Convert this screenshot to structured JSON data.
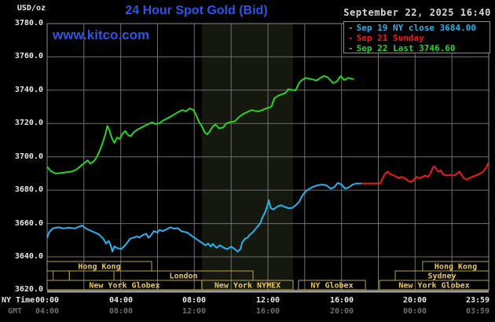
{
  "header": {
    "units_label": "USD/oz",
    "title": "24 Hour Spot Gold (Bid)",
    "datetime": "September 22, 2025 16:40",
    "watermark": "www.kitco.com"
  },
  "legend": {
    "items": [
      {
        "id": "sep19",
        "label": "Sep 19 NY close 3684.00",
        "color": "#29b2ee"
      },
      {
        "id": "sep21",
        "label": "Sep 21 Sunday",
        "color": "#f01a1a"
      },
      {
        "id": "sep22",
        "label": "Sep 22 Last 3746.60",
        "color": "#27d427"
      }
    ]
  },
  "axes": {
    "y_ticks": [
      "3780.0",
      "3760.0",
      "3740.0",
      "3720.0",
      "3700.0",
      "3680.0",
      "3660.0",
      "3640.0",
      "3620.0"
    ],
    "x_primary_label": "NY Time",
    "x_secondary_label": "GMT",
    "x_primary_ticks": [
      "00:00",
      "04:00",
      "08:00",
      "12:00",
      "16:00",
      "20:00",
      "23:59"
    ],
    "x_secondary_ticks": [
      "04:00",
      "08:00",
      "12:00",
      "16:00",
      "20:00",
      "00:00",
      "03:59"
    ]
  },
  "sessions": {
    "rows": [
      {
        "boxes": [
          {
            "start": 0,
            "end": 5.68,
            "label": "Hong Kong"
          },
          {
            "start": 20.41,
            "end": 24,
            "label": "Hong Kong"
          }
        ]
      },
      {
        "boxes": [
          {
            "start": 0.33,
            "end": 1.21,
            "label": ""
          },
          {
            "start": 1.21,
            "end": 3.63,
            "label": ""
          },
          {
            "start": 3.63,
            "end": 11.19,
            "label": "London"
          },
          {
            "start": 18.92,
            "end": 24,
            "label": "Sydney"
          }
        ]
      },
      {
        "boxes": [
          {
            "start": 0,
            "end": 8.41,
            "label": "New York Globex"
          },
          {
            "start": 8.41,
            "end": 13.37,
            "label": "New York NYMEX"
          },
          {
            "start": 13.66,
            "end": 17.3,
            "label": "NY Globex"
          },
          {
            "start": 18.06,
            "end": 24,
            "label": "New York Globex"
          }
        ]
      }
    ]
  },
  "colors": {
    "background": "#000000",
    "grid": "#6f6f6f",
    "frame": "#8a8a8a",
    "axis_line": "#b8b8b8",
    "band": "#15180f",
    "session_border": "#b5a055",
    "session_text": "#e8c85a",
    "title_blue": "#2f55e5",
    "text_white": "#e8e8e8",
    "text_gray": "#6e6e6e",
    "date_text": "#d8d8d8",
    "cyan": "#29b2ee",
    "red": "#f01a1a",
    "green": "#27d427"
  },
  "chart_data": {
    "type": "line",
    "title": "24 Hour Spot Gold (Bid)",
    "ylabel": "USD/oz",
    "ylim": [
      3620,
      3780
    ],
    "y_tick_step": 20,
    "x_unit": "hours NY Time",
    "xlim": [
      0,
      24
    ],
    "grid": true,
    "legend_position": "top-right",
    "shaded_region_hours": [
      8.41,
      13.37
    ],
    "shaded_region_note": "New York NYMEX session",
    "series": [
      {
        "id": "sep19",
        "name": "Sep 19 NY close 3684.00",
        "color": "#29b2ee",
        "points": [
          [
            0,
            3651.5
          ],
          [
            0.1,
            3654.5
          ],
          [
            0.3,
            3657
          ],
          [
            0.6,
            3657.7
          ],
          [
            0.9,
            3657
          ],
          [
            1.2,
            3657.5
          ],
          [
            1.5,
            3657
          ],
          [
            1.9,
            3658.8
          ],
          [
            2.1,
            3657
          ],
          [
            2.4,
            3655.5
          ],
          [
            2.6,
            3654.5
          ],
          [
            2.8,
            3653.5
          ],
          [
            3,
            3651.5
          ],
          [
            3.1,
            3650
          ],
          [
            3.2,
            3648
          ],
          [
            3.35,
            3649.5
          ],
          [
            3.45,
            3646.9
          ],
          [
            3.55,
            3643.1
          ],
          [
            3.65,
            3646.2
          ],
          [
            3.8,
            3645.3
          ],
          [
            4,
            3644.6
          ],
          [
            4.1,
            3645.4
          ],
          [
            4.25,
            3647
          ],
          [
            4.4,
            3649.2
          ],
          [
            4.5,
            3650.8
          ],
          [
            4.7,
            3651.5
          ],
          [
            4.9,
            3652.3
          ],
          [
            5,
            3651.5
          ],
          [
            5.2,
            3653.1
          ],
          [
            5.4,
            3653.8
          ],
          [
            5.5,
            3651.5
          ],
          [
            5.6,
            3652.3
          ],
          [
            5.8,
            3655.4
          ],
          [
            6,
            3654.6
          ],
          [
            6.1,
            3656.1
          ],
          [
            6.3,
            3655.4
          ],
          [
            6.5,
            3656.6
          ],
          [
            6.7,
            3657.7
          ],
          [
            6.9,
            3656.9
          ],
          [
            7.1,
            3657.2
          ],
          [
            7.3,
            3655.4
          ],
          [
            7.6,
            3654.6
          ],
          [
            7.8,
            3653.1
          ],
          [
            8,
            3651.5
          ],
          [
            8.2,
            3650
          ],
          [
            8.4,
            3648.5
          ],
          [
            8.6,
            3646.9
          ],
          [
            8.75,
            3648
          ],
          [
            8.9,
            3646.2
          ],
          [
            9,
            3647.7
          ],
          [
            9.2,
            3645.4
          ],
          [
            9.4,
            3646.9
          ],
          [
            9.6,
            3645.4
          ],
          [
            9.8,
            3644.6
          ],
          [
            10,
            3646.2
          ],
          [
            10.2,
            3644.6
          ],
          [
            10.35,
            3643.1
          ],
          [
            10.5,
            3644.6
          ],
          [
            10.6,
            3648.5
          ],
          [
            10.75,
            3650.8
          ],
          [
            10.9,
            3651.5
          ],
          [
            11,
            3653.1
          ],
          [
            11.2,
            3655
          ],
          [
            11.35,
            3657
          ],
          [
            11.5,
            3659
          ],
          [
            11.6,
            3660.5
          ],
          [
            11.7,
            3663.6
          ],
          [
            11.85,
            3666.8
          ],
          [
            11.95,
            3670
          ],
          [
            12.05,
            3673.9
          ],
          [
            12.15,
            3669.2
          ],
          [
            12.3,
            3668.4
          ],
          [
            12.5,
            3670
          ],
          [
            12.7,
            3671
          ],
          [
            12.9,
            3670
          ],
          [
            13.1,
            3669.2
          ],
          [
            13.3,
            3669.2
          ],
          [
            13.5,
            3670.8
          ],
          [
            13.7,
            3673.1
          ],
          [
            13.85,
            3676.3
          ],
          [
            14,
            3678.6
          ],
          [
            14.15,
            3680.1
          ],
          [
            14.4,
            3681.7
          ],
          [
            14.7,
            3683
          ],
          [
            15,
            3683.3
          ],
          [
            15.2,
            3682.8
          ],
          [
            15.4,
            3680.9
          ],
          [
            15.6,
            3681.7
          ],
          [
            15.8,
            3684.4
          ],
          [
            16,
            3683.3
          ],
          [
            16.2,
            3680.9
          ],
          [
            16.4,
            3681.7
          ],
          [
            16.6,
            3683.3
          ],
          [
            16.8,
            3684
          ],
          [
            17.1,
            3684
          ]
        ]
      },
      {
        "id": "sep21",
        "name": "Sep 21 Sunday",
        "color": "#f01a1a",
        "points": [
          [
            17.1,
            3684
          ],
          [
            18.1,
            3684
          ],
          [
            18.35,
            3689.6
          ],
          [
            18.5,
            3691.2
          ],
          [
            18.65,
            3689.6
          ],
          [
            18.85,
            3688.8
          ],
          [
            19,
            3688
          ],
          [
            19.1,
            3687.2
          ],
          [
            19.25,
            3688
          ],
          [
            19.45,
            3687.2
          ],
          [
            19.6,
            3685.7
          ],
          [
            19.75,
            3684.9
          ],
          [
            19.9,
            3685.7
          ],
          [
            20,
            3687.2
          ],
          [
            20.1,
            3688
          ],
          [
            20.25,
            3687.2
          ],
          [
            20.4,
            3688
          ],
          [
            20.55,
            3688.8
          ],
          [
            20.7,
            3688
          ],
          [
            20.85,
            3690.4
          ],
          [
            20.95,
            3693.5
          ],
          [
            21.05,
            3694.3
          ],
          [
            21.15,
            3692.7
          ],
          [
            21.25,
            3691.2
          ],
          [
            21.4,
            3691.9
          ],
          [
            21.5,
            3689.6
          ],
          [
            21.7,
            3688.8
          ],
          [
            21.9,
            3689.1
          ],
          [
            22.1,
            3688.8
          ],
          [
            22.25,
            3689.6
          ],
          [
            22.4,
            3691.2
          ],
          [
            22.5,
            3689.6
          ],
          [
            22.65,
            3687.2
          ],
          [
            22.8,
            3686.4
          ],
          [
            22.95,
            3687.2
          ],
          [
            23.1,
            3688
          ],
          [
            23.3,
            3688.8
          ],
          [
            23.45,
            3689.6
          ],
          [
            23.6,
            3690.4
          ],
          [
            23.7,
            3691.2
          ],
          [
            23.8,
            3692.7
          ],
          [
            23.9,
            3694.3
          ],
          [
            23.98,
            3696.4
          ]
        ]
      },
      {
        "id": "sep22",
        "name": "Sep 22 Last 3746.60",
        "color": "#27d427",
        "points": [
          [
            0,
            3694
          ],
          [
            0.2,
            3691.5
          ],
          [
            0.45,
            3690
          ],
          [
            0.75,
            3690.3
          ],
          [
            1.05,
            3690.8
          ],
          [
            1.35,
            3691.2
          ],
          [
            1.6,
            3692.5
          ],
          [
            1.8,
            3694.3
          ],
          [
            2.05,
            3696.5
          ],
          [
            2.2,
            3697.9
          ],
          [
            2.35,
            3695.9
          ],
          [
            2.55,
            3697.5
          ],
          [
            2.7,
            3700
          ],
          [
            2.85,
            3703.5
          ],
          [
            3,
            3708
          ],
          [
            3.15,
            3713
          ],
          [
            3.27,
            3718.6
          ],
          [
            3.4,
            3715.5
          ],
          [
            3.5,
            3711.6
          ],
          [
            3.65,
            3708.4
          ],
          [
            3.8,
            3711.6
          ],
          [
            3.95,
            3710.8
          ],
          [
            4.1,
            3714
          ],
          [
            4.25,
            3715.5
          ],
          [
            4.4,
            3713.1
          ],
          [
            4.55,
            3712.4
          ],
          [
            4.7,
            3714.7
          ],
          [
            4.9,
            3716.3
          ],
          [
            5.1,
            3717.4
          ],
          [
            5.3,
            3718.6
          ],
          [
            5.5,
            3719.7
          ],
          [
            5.7,
            3720.7
          ],
          [
            5.9,
            3719.7
          ],
          [
            6.1,
            3720.2
          ],
          [
            6.3,
            3721.8
          ],
          [
            6.5,
            3722.9
          ],
          [
            6.7,
            3724.1
          ],
          [
            6.9,
            3725.4
          ],
          [
            7.15,
            3727
          ],
          [
            7.35,
            3728.1
          ],
          [
            7.55,
            3727.3
          ],
          [
            7.75,
            3729.1
          ],
          [
            7.95,
            3728.1
          ],
          [
            8.1,
            3725
          ],
          [
            8.25,
            3721
          ],
          [
            8.4,
            3718.6
          ],
          [
            8.55,
            3715
          ],
          [
            8.68,
            3713.5
          ],
          [
            8.8,
            3714.7
          ],
          [
            9,
            3718.2
          ],
          [
            9.15,
            3719.4
          ],
          [
            9.35,
            3717.1
          ],
          [
            9.55,
            3717.5
          ],
          [
            9.75,
            3720.2
          ],
          [
            10,
            3721
          ],
          [
            10.2,
            3721.3
          ],
          [
            10.45,
            3724.1
          ],
          [
            10.65,
            3725.7
          ],
          [
            10.9,
            3727
          ],
          [
            11.1,
            3728.1
          ],
          [
            11.3,
            3727.6
          ],
          [
            11.5,
            3727.3
          ],
          [
            11.7,
            3728.1
          ],
          [
            11.9,
            3729.1
          ],
          [
            12.1,
            3729.6
          ],
          [
            12.2,
            3730.4
          ],
          [
            12.35,
            3735.1
          ],
          [
            12.55,
            3736.7
          ],
          [
            12.75,
            3737.5
          ],
          [
            12.95,
            3738.3
          ],
          [
            13.1,
            3740.6
          ],
          [
            13.3,
            3740.2
          ],
          [
            13.5,
            3739.8
          ],
          [
            13.7,
            3744.5
          ],
          [
            13.85,
            3746.1
          ],
          [
            14.05,
            3747.4
          ],
          [
            14.25,
            3746.9
          ],
          [
            14.45,
            3746.4
          ],
          [
            14.65,
            3745.8
          ],
          [
            14.85,
            3747.4
          ],
          [
            15.05,
            3748.5
          ],
          [
            15.25,
            3747.7
          ],
          [
            15.55,
            3744.2
          ],
          [
            15.75,
            3745.3
          ],
          [
            15.95,
            3748.5
          ],
          [
            16.15,
            3746.1
          ],
          [
            16.35,
            3747.4
          ],
          [
            16.67,
            3746.6
          ]
        ]
      }
    ]
  }
}
